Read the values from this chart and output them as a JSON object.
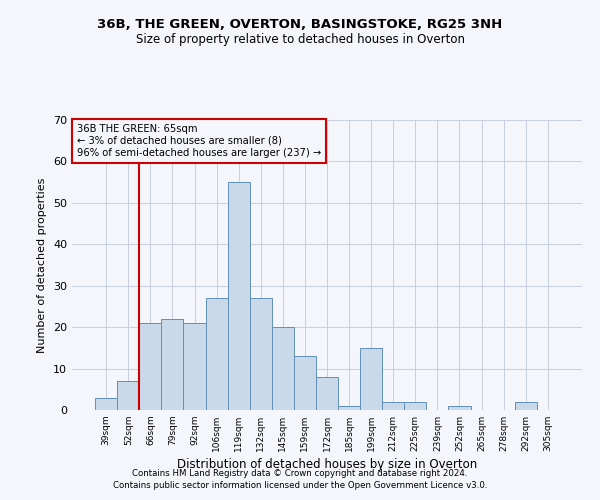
{
  "title1": "36B, THE GREEN, OVERTON, BASINGSTOKE, RG25 3NH",
  "title2": "Size of property relative to detached houses in Overton",
  "xlabel": "Distribution of detached houses by size in Overton",
  "ylabel": "Number of detached properties",
  "categories": [
    "39sqm",
    "52sqm",
    "66sqm",
    "79sqm",
    "92sqm",
    "106sqm",
    "119sqm",
    "132sqm",
    "145sqm",
    "159sqm",
    "172sqm",
    "185sqm",
    "199sqm",
    "212sqm",
    "225sqm",
    "239sqm",
    "252sqm",
    "265sqm",
    "278sqm",
    "292sqm",
    "305sqm"
  ],
  "values": [
    3,
    7,
    21,
    22,
    21,
    27,
    55,
    27,
    20,
    13,
    8,
    1,
    15,
    2,
    2,
    0,
    1,
    0,
    0,
    2,
    0
  ],
  "bar_color": "#c9d9ea",
  "bar_edge_color": "#6090b8",
  "property_label": "36B THE GREEN: 65sqm",
  "annotation_line1": "← 3% of detached houses are smaller (8)",
  "annotation_line2": "96% of semi-detached houses are larger (237) →",
  "vline_x_index": 2,
  "vline_color": "#cc0000",
  "annotation_box_color": "#cc0000",
  "footer1": "Contains HM Land Registry data © Crown copyright and database right 2024.",
  "footer2": "Contains public sector information licensed under the Open Government Licence v3.0.",
  "bg_color": "#f4f6fb",
  "grid_color": "#c8cfe0",
  "ylim": [
    0,
    70
  ],
  "yticks": [
    0,
    10,
    20,
    30,
    40,
    50,
    60,
    70
  ]
}
